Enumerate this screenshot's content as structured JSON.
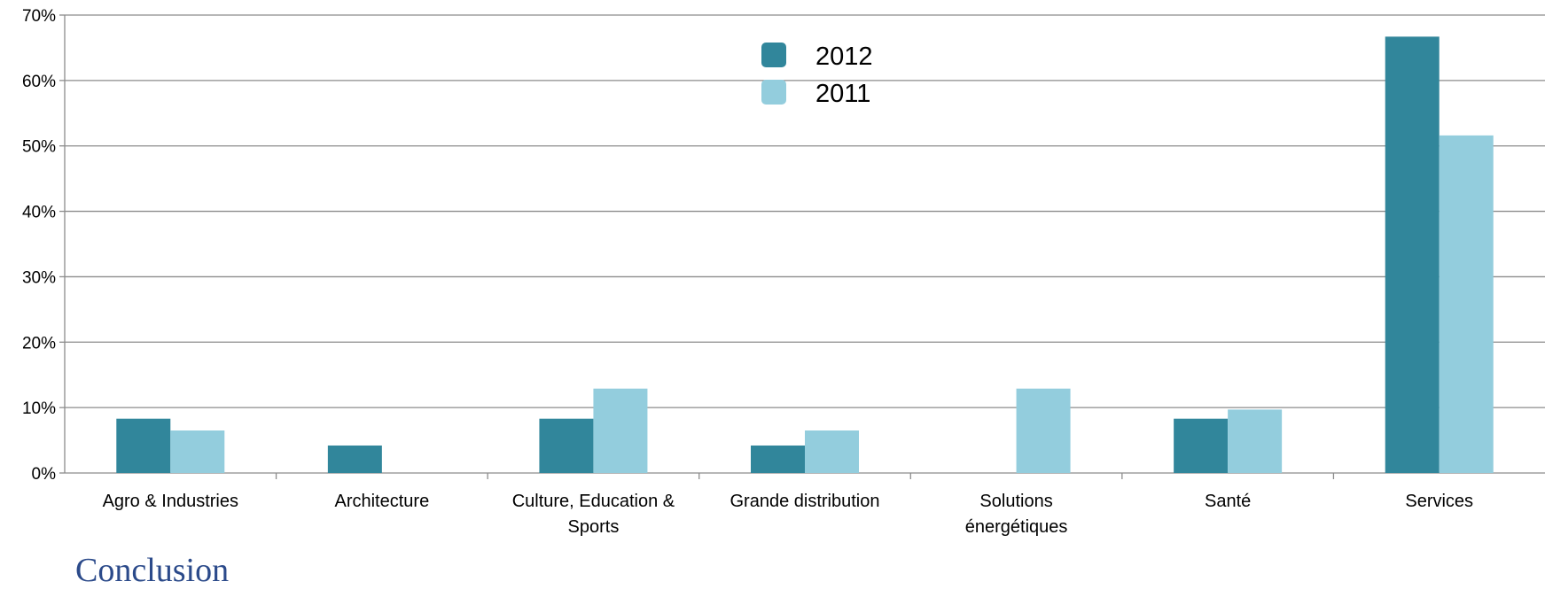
{
  "chart_data": {
    "type": "bar",
    "categories": [
      [
        "Agro & Industries"
      ],
      [
        "Architecture"
      ],
      [
        "Culture, Education &",
        "Sports"
      ],
      [
        "Grande distribution"
      ],
      [
        "Solutions",
        "énergétiques"
      ],
      [
        "Santé"
      ],
      [
        "Services"
      ]
    ],
    "series": [
      {
        "name": "2012",
        "color": "#31869b",
        "values": [
          8.3,
          4.2,
          8.3,
          4.2,
          0,
          8.3,
          66.7
        ]
      },
      {
        "name": "2011",
        "color": "#93cddd",
        "values": [
          6.5,
          0,
          12.9,
          6.5,
          12.9,
          9.7,
          51.6
        ]
      }
    ],
    "yticks": [
      "0%",
      "10%",
      "20%",
      "30%",
      "40%",
      "50%",
      "60%",
      "70%"
    ],
    "ylim": [
      0,
      70
    ],
    "grid": true,
    "legend_position": "top-center"
  },
  "partial_text": "Conclusion"
}
